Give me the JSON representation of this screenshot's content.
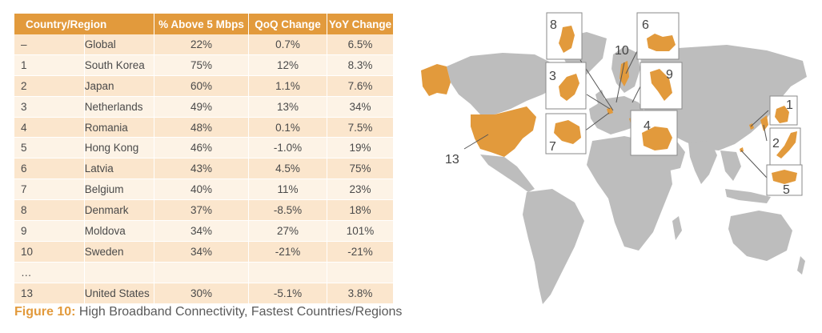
{
  "table": {
    "headers": [
      "Country/Region",
      "% Above 5 Mbps",
      "QoQ Change",
      "YoY Change"
    ],
    "rows": [
      {
        "rank": "–",
        "name": "Global",
        "pct": "22%",
        "qoq": "0.7%",
        "yoy": "6.5%"
      },
      {
        "rank": "1",
        "name": "South Korea",
        "pct": "75%",
        "qoq": "12%",
        "yoy": "8.3%"
      },
      {
        "rank": "2",
        "name": "Japan",
        "pct": "60%",
        "qoq": "1.1%",
        "yoy": "7.6%"
      },
      {
        "rank": "3",
        "name": "Netherlands",
        "pct": "49%",
        "qoq": "13%",
        "yoy": "34%"
      },
      {
        "rank": "4",
        "name": "Romania",
        "pct": "48%",
        "qoq": "0.1%",
        "yoy": "7.5%"
      },
      {
        "rank": "5",
        "name": "Hong Kong",
        "pct": "46%",
        "qoq": "-1.0%",
        "yoy": "19%"
      },
      {
        "rank": "6",
        "name": "Latvia",
        "pct": "43%",
        "qoq": "4.5%",
        "yoy": "75%"
      },
      {
        "rank": "7",
        "name": "Belgium",
        "pct": "40%",
        "qoq": "11%",
        "yoy": "23%"
      },
      {
        "rank": "8",
        "name": "Denmark",
        "pct": "37%",
        "qoq": "-8.5%",
        "yoy": "18%"
      },
      {
        "rank": "9",
        "name": "Moldova",
        "pct": "34%",
        "qoq": "27%",
        "yoy": "101%"
      },
      {
        "rank": "10",
        "name": "Sweden",
        "pct": "34%",
        "qoq": "-21%",
        "yoy": "-21%"
      },
      {
        "rank": "…",
        "name": "",
        "pct": "",
        "qoq": "",
        "yoy": ""
      },
      {
        "rank": "13",
        "name": "United States",
        "pct": "30%",
        "qoq": "-5.1%",
        "yoy": "3.8%"
      }
    ]
  },
  "caption": {
    "label": "Figure 10:",
    "text": " High Broadband Connectivity, Fastest Countries/Regions"
  },
  "map": {
    "callouts": [
      "1",
      "2",
      "3",
      "4",
      "5",
      "6",
      "7",
      "8",
      "9",
      "10",
      "13"
    ],
    "highlight_color": "#e29a3c",
    "land_color": "#bdbdbd"
  }
}
